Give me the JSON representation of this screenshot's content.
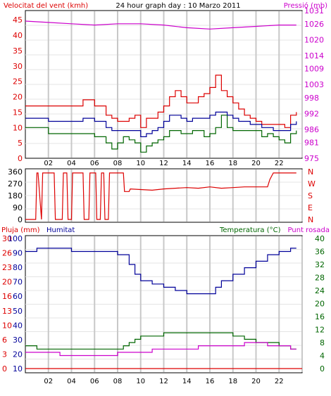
{
  "title": "24 hour graph day : 10 Marzo 2011",
  "colors": {
    "red": "#dd0000",
    "blue": "#000099",
    "green": "#006600",
    "magenta": "#cc00cc",
    "grid": "#c8c8c8",
    "frame": "#000000"
  },
  "x_ticks": [
    "02",
    "04",
    "06",
    "08",
    "10",
    "12",
    "14",
    "16",
    "18",
    "20",
    "22"
  ],
  "chart_data": [
    {
      "type": "line",
      "title": "24 hour graph day : 10 Marzo 2011",
      "ylabel_left": "Velocitat del vent (kmh)",
      "ylabel_right": "Pressió (mb)",
      "yticks_left": [
        "0",
        "5",
        "10",
        "15",
        "20",
        "25",
        "30",
        "35",
        "40",
        "45"
      ],
      "yticks_right": [
        "975",
        "981",
        "986",
        "992",
        "998",
        "1003",
        "1009",
        "1014",
        "1020",
        "1026",
        "1031"
      ],
      "ylim_left": [
        0,
        48
      ],
      "ylim_right": [
        975,
        1031
      ],
      "x_range": [
        0,
        24
      ],
      "grid": true,
      "series": [
        {
          "axis": "left",
          "color": "red",
          "x": [
            0,
            1,
            2,
            3,
            4,
            5,
            6,
            7,
            7.5,
            8,
            8.5,
            9,
            9.5,
            10,
            10.5,
            11,
            11.5,
            12,
            12.5,
            13,
            13.5,
            14,
            14.5,
            15,
            15.5,
            16,
            16.5,
            17,
            17.5,
            18,
            18.5,
            19,
            19.5,
            20,
            20.5,
            21,
            21.5,
            22,
            22.5,
            23,
            23.5
          ],
          "y": [
            17,
            17,
            17,
            17,
            17,
            19,
            17,
            14,
            13,
            12,
            12,
            13,
            14,
            10,
            13,
            13,
            15,
            17,
            20,
            22,
            20,
            18,
            18,
            20,
            21,
            23,
            27,
            22,
            20,
            18,
            16,
            14,
            13,
            12,
            11,
            11,
            11,
            11,
            10,
            14,
            15
          ]
        },
        {
          "axis": "left",
          "color": "green",
          "x": [
            0,
            1,
            2,
            3,
            4,
            5,
            6,
            7,
            7.5,
            8,
            8.5,
            9,
            9.5,
            10,
            10.5,
            11,
            11.5,
            12,
            12.5,
            13,
            13.5,
            14,
            14.5,
            15,
            15.5,
            16,
            16.5,
            17,
            17.5,
            18,
            18.5,
            19,
            19.5,
            20,
            20.5,
            21,
            21.5,
            22,
            22.5,
            23,
            23.5
          ],
          "y": [
            10,
            10,
            8,
            8,
            8,
            8,
            7,
            5,
            3,
            5,
            7,
            6,
            5,
            2,
            4,
            5,
            6,
            7,
            9,
            9,
            8,
            8,
            9,
            9,
            7,
            8,
            10,
            14,
            10,
            9,
            9,
            9,
            9,
            9,
            7,
            8,
            7,
            6,
            5,
            8,
            9
          ]
        },
        {
          "axis": "left",
          "color": "blue",
          "x": [
            0,
            1,
            2,
            3,
            4,
            5,
            6,
            7,
            7.5,
            8,
            8.5,
            9,
            9.5,
            10,
            10.5,
            11,
            11.5,
            12,
            12.5,
            13,
            13.5,
            14,
            14.5,
            15,
            15.5,
            16,
            16.5,
            17,
            17.5,
            18,
            18.5,
            19,
            19.5,
            20,
            20.5,
            21,
            21.5,
            22,
            22.5,
            23,
            23.5
          ],
          "y": [
            13,
            13,
            12,
            12,
            12,
            13,
            12,
            10,
            9,
            9,
            9,
            9,
            9,
            7,
            8,
            9,
            10,
            12,
            14,
            14,
            13,
            12,
            13,
            13,
            13,
            14,
            15,
            15,
            14,
            13,
            12,
            12,
            11,
            11,
            10,
            10,
            9,
            9,
            9,
            11,
            12
          ]
        },
        {
          "axis": "right",
          "color": "magenta",
          "x": [
            0,
            2,
            4,
            6,
            8,
            10,
            12,
            14,
            16,
            18,
            20,
            22,
            23.5
          ],
          "y": [
            1027,
            1026.5,
            1026,
            1025.5,
            1026,
            1026,
            1025.5,
            1024.5,
            1024,
            1024.5,
            1025,
            1025.5,
            1025.5
          ]
        }
      ]
    },
    {
      "type": "line",
      "ylabel_right": "N W S E N",
      "yticks_left": [
        "0",
        "90",
        "180",
        "270",
        "360"
      ],
      "ylim": [
        0,
        360
      ],
      "x_range": [
        0,
        24
      ],
      "grid": true,
      "series": [
        {
          "color": "red",
          "x": [
            0,
            0.9,
            1.0,
            1.1,
            1.4,
            1.5,
            2.5,
            2.6,
            3.2,
            3.3,
            3.6,
            3.7,
            4.0,
            4.1,
            5.0,
            5.1,
            5.5,
            5.6,
            6.1,
            6.2,
            6.5,
            6.6,
            6.8,
            6.9,
            7.2,
            7.3,
            8.5,
            8.6,
            9.0,
            9.1,
            10,
            11,
            12,
            13,
            14,
            15,
            16,
            17,
            18,
            19,
            20,
            21,
            21.2,
            21.5,
            22,
            23,
            23.5
          ],
          "y": [
            0,
            0,
            350,
            350,
            0,
            350,
            350,
            0,
            0,
            350,
            350,
            0,
            0,
            350,
            350,
            0,
            0,
            350,
            350,
            0,
            0,
            350,
            350,
            0,
            0,
            350,
            350,
            210,
            210,
            230,
            225,
            220,
            230,
            235,
            240,
            235,
            245,
            235,
            240,
            245,
            245,
            245,
            300,
            350,
            350,
            350,
            350
          ]
        }
      ]
    },
    {
      "type": "line",
      "ylabel_left": "Pluja (mm)",
      "ylabel_left2": "Humitat",
      "ylabel_right": "Temperatura (°C)",
      "ylabel_right2": "Punt rosada",
      "yticks_left": [
        "0",
        "3",
        "6",
        "10",
        "13",
        "16",
        "20",
        "23",
        "26",
        "30"
      ],
      "yticks_left2": [
        "10",
        "20",
        "30",
        "40",
        "50",
        "60",
        "70",
        "80",
        "90",
        "100"
      ],
      "yticks_right": [
        "0",
        "4",
        "8",
        "12",
        "16",
        "20",
        "24",
        "28",
        "32",
        "36",
        "40"
      ],
      "ylim_left": [
        0,
        30
      ],
      "ylim_right": [
        0,
        40
      ],
      "x_range": [
        0,
        24
      ],
      "grid": true,
      "series": [
        {
          "axis": "left",
          "color": "red",
          "x": [
            0,
            24
          ],
          "y": [
            0,
            0
          ]
        },
        {
          "axis": "right",
          "color": "blue",
          "x": [
            0,
            1,
            2,
            3,
            4,
            5,
            6,
            7,
            8,
            9,
            9.5,
            10,
            11,
            12,
            13,
            14,
            15,
            16,
            16.5,
            17,
            18,
            19,
            20,
            21,
            22,
            23,
            23.5
          ],
          "y": [
            36,
            37,
            37,
            37,
            36,
            36,
            36,
            36,
            35,
            32,
            29,
            27,
            26,
            25,
            24,
            23,
            23,
            23,
            25,
            27,
            29,
            31,
            33,
            35,
            36,
            37,
            37
          ]
        },
        {
          "axis": "right",
          "color": "green",
          "x": [
            0,
            1,
            2,
            3,
            4,
            5,
            6,
            7,
            8,
            8.5,
            9,
            9.5,
            10,
            11,
            12,
            13,
            14,
            15,
            16,
            17,
            18,
            19,
            20,
            21,
            22,
            23,
            23.5
          ],
          "y": [
            7,
            6,
            6,
            6,
            6,
            6,
            6,
            6,
            6,
            7,
            8,
            9,
            10,
            10,
            11,
            11,
            11,
            11,
            11,
            11,
            10,
            9,
            8,
            8,
            7,
            6,
            6
          ]
        },
        {
          "axis": "right",
          "color": "magenta",
          "x": [
            0,
            1,
            2,
            3,
            4,
            5,
            6,
            7,
            8,
            9,
            10,
            11,
            12,
            13,
            14,
            15,
            16,
            17,
            18,
            19,
            20,
            21,
            22,
            23,
            23.5
          ],
          "y": [
            5,
            5,
            5,
            4,
            4,
            4,
            4,
            4,
            5,
            5,
            5,
            6,
            6,
            6,
            6,
            7,
            7,
            7,
            7,
            8,
            8,
            7,
            7,
            6,
            6
          ]
        }
      ]
    }
  ]
}
